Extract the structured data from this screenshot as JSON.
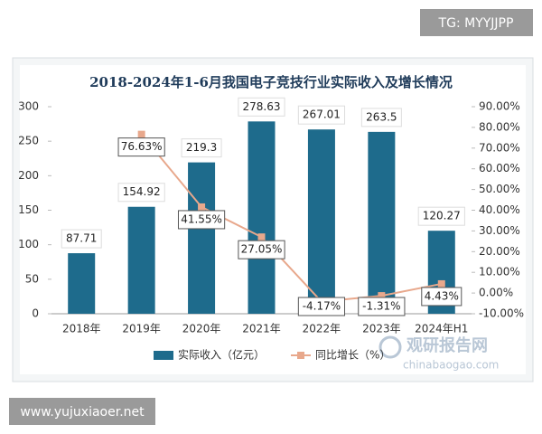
{
  "chart_data": {
    "type": "bar",
    "title": "2018-2024年1-6月我国电子竞技行业实际收入及增长情况",
    "categories": [
      "2018年",
      "2019年",
      "2020年",
      "2021年",
      "2022年",
      "2023年",
      "2024年H1"
    ],
    "series": [
      {
        "name": "实际收入（亿元）",
        "type": "bar",
        "color": "#1e6b8c",
        "values": [
          87.71,
          154.92,
          219.3,
          278.63,
          267.01,
          263.5,
          120.27
        ]
      },
      {
        "name": "同比增长（%）",
        "type": "line",
        "axis": "y2",
        "color": "#e8a88c",
        "values": [
          null,
          76.63,
          41.55,
          27.05,
          -4.17,
          -1.31,
          4.43
        ],
        "value_labels": [
          null,
          "76.63%",
          "41.55%",
          "27.05%",
          "-4.17%",
          "-1.31%",
          "4.43%"
        ]
      }
    ],
    "ylim": [
      0,
      300
    ],
    "yticks": [
      0,
      50,
      100,
      150,
      200,
      250,
      300
    ],
    "y2lim": [
      -10,
      90
    ],
    "y2ticks": [
      {
        "value": -10,
        "label": "-10.00%"
      },
      {
        "value": 0,
        "label": "0.00%"
      },
      {
        "value": 10,
        "label": "10.00%"
      },
      {
        "value": 20,
        "label": "20.00%"
      },
      {
        "value": 30,
        "label": "30.00%"
      },
      {
        "value": 40,
        "label": "40.00%"
      },
      {
        "value": 50,
        "label": "50.00%"
      },
      {
        "value": 60,
        "label": "60.00%"
      },
      {
        "value": 70,
        "label": "70.00%"
      },
      {
        "value": 80,
        "label": "80.00%"
      },
      {
        "value": 90,
        "label": "90.00%"
      }
    ],
    "grid": false,
    "legend": "bottom"
  },
  "watermarks": {
    "top_right": "TG: MYYJJPP",
    "bottom_left": "www.yujuxiaoer.net",
    "logo_cn": "观研报告网",
    "logo_en": "chinabaogao.com"
  }
}
